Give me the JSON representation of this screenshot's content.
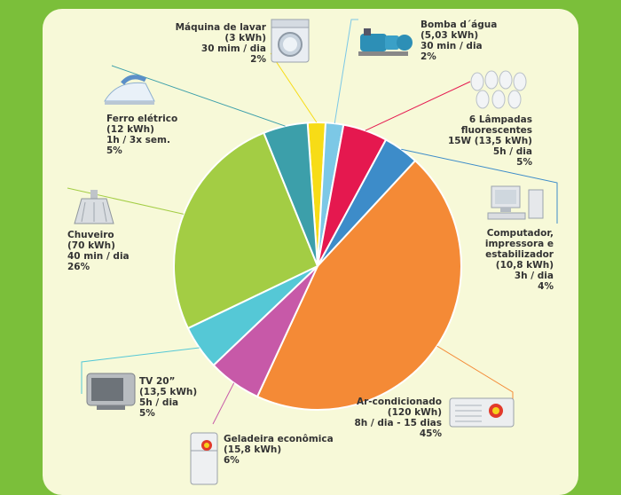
{
  "chart_data": {
    "type": "pie",
    "title": "",
    "slices": [
      {
        "name": "Máquina de lavar",
        "energy": "(3 kWh)",
        "usage": "30 mim / dia",
        "pct_label": "2%",
        "value": 2,
        "color": "#f7dc16",
        "icon": "washing-machine-icon"
      },
      {
        "name": "Bomba d´água",
        "energy": "(5,03 kWh)",
        "usage": "30 min / dia",
        "pct_label": "2%",
        "value": 2,
        "color": "#7cc8e6",
        "icon": "water-pump-icon"
      },
      {
        "name": "6 Lâmpadas fluorescentes",
        "name_lines": [
          "6 Lâmpadas",
          "fluorescentes"
        ],
        "energy": "15W (13,5 kWh)",
        "usage": "5h / dia",
        "pct_label": "5%",
        "value": 5,
        "color": "#e5184f",
        "icon": "fluorescent-lamps-icon"
      },
      {
        "name": "Computador, impressora e estabilizador",
        "name_lines": [
          "Computador,",
          "impressora e",
          "estabilizador"
        ],
        "energy": "(10,8 kWh)",
        "usage": "3h / dia",
        "pct_label": "4%",
        "value": 4,
        "color": "#3d8cc9",
        "icon": "computer-icon"
      },
      {
        "name": "Ar-condicionado",
        "energy": "(120 kWh)",
        "usage": "8h / dia - 15 dias",
        "pct_label": "45%",
        "value": 45,
        "color": "#f48a36",
        "icon": "air-conditioner-icon"
      },
      {
        "name": "Geladeira econômica",
        "energy": "(15,8 kWh)",
        "usage": "",
        "pct_label": "6%",
        "value": 6,
        "color": "#c759a8",
        "icon": "refrigerator-icon"
      },
      {
        "name": "TV 20”",
        "energy": "(13,5 kWh)",
        "usage": "5h / dia",
        "pct_label": "5%",
        "value": 5,
        "color": "#55c8d6",
        "icon": "tv-icon"
      },
      {
        "name": "Chuveiro",
        "energy": "(70 kWh)",
        "usage": "40 min / dia",
        "pct_label": "26%",
        "value": 26,
        "color": "#a3cd44",
        "icon": "shower-icon"
      },
      {
        "name": "Ferro elétrico",
        "energy": "(12 kWh)",
        "usage": "1h / 3x sem.",
        "pct_label": "5%",
        "value": 5,
        "color": "#3c9faa",
        "icon": "iron-icon"
      }
    ]
  }
}
